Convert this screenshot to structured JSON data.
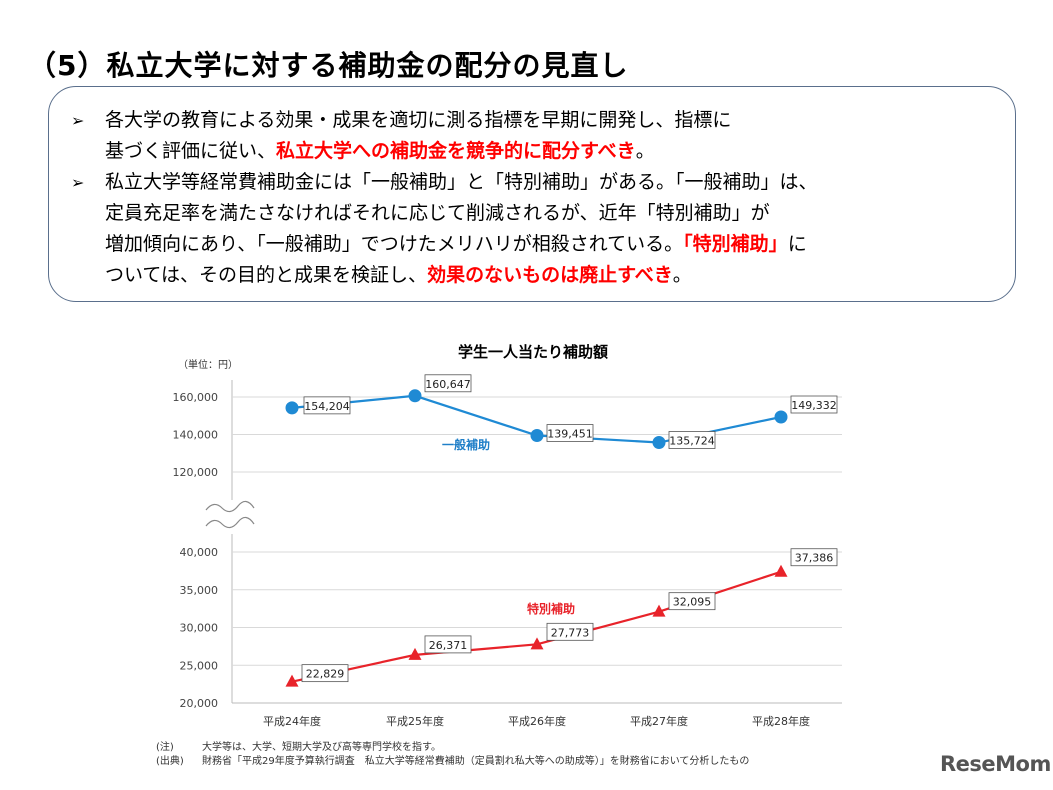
{
  "page": {
    "title": "（5）私立大学に対する補助金の配分の見直し"
  },
  "summary": {
    "bullet_glyph": "➢",
    "bullets": [
      {
        "lines": [
          [
            {
              "text": "各大学の教育による効果・成果を適切に測る指標を早期に開発し、指標に",
              "hl": false
            }
          ],
          [
            {
              "text": "基づく評価に従い、",
              "hl": false
            },
            {
              "text": "私立大学への補助金を競争的に配分すべき",
              "hl": true
            },
            {
              "text": "。",
              "hl": false
            }
          ]
        ]
      },
      {
        "lines": [
          [
            {
              "text": "私立大学等経常費補助金には「一般補助」と「特別補助」がある。「一般補助」は、",
              "hl": false
            }
          ],
          [
            {
              "text": "定員充足率を満たさなければそれに応じて削減されるが、近年「特別補助」が",
              "hl": false
            }
          ],
          [
            {
              "text": "増加傾向にあり、「一般補助」でつけたメリハリが相殺されている。",
              "hl": false
            },
            {
              "text": "「特別補助」",
              "hl": true
            },
            {
              "text": "に",
              "hl": false
            }
          ],
          [
            {
              "text": "ついては、その目的と成果を検証し、",
              "hl": false
            },
            {
              "text": "効果のないものは廃止すべき",
              "hl": true
            },
            {
              "text": "。",
              "hl": false
            }
          ]
        ]
      }
    ]
  },
  "chart_data": {
    "type": "line",
    "title": "学生一人当たり補助額",
    "unit_label": "（単位：円）",
    "categories": [
      "平成24年度",
      "平成25年度",
      "平成26年度",
      "平成27年度",
      "平成28年度"
    ],
    "axis_break": true,
    "y_upper": {
      "range": [
        120000,
        160000
      ],
      "ticks": [
        "120,000",
        "140,000",
        "160,000"
      ],
      "tick_values": [
        120000,
        140000,
        160000
      ]
    },
    "y_lower": {
      "range": [
        20000,
        40000
      ],
      "ticks": [
        "20,000",
        "25,000",
        "30,000",
        "35,000",
        "40,000"
      ],
      "tick_values": [
        20000,
        25000,
        30000,
        35000,
        40000
      ]
    },
    "grid": "horizontal",
    "series": [
      {
        "name": "一般補助",
        "marker": "circle",
        "color": "#1f8ad4",
        "label_color": "#1f7fc8",
        "values": [
          154204,
          160647,
          139451,
          135724,
          149332
        ],
        "labels": [
          "154,204",
          "160,647",
          "139,451",
          "135,724",
          "149,332"
        ]
      },
      {
        "name": "特別補助",
        "marker": "triangle",
        "color": "#e8232a",
        "label_color": "#e8232a",
        "values": [
          22829,
          26371,
          27773,
          32095,
          37386
        ],
        "labels": [
          "22,829",
          "26,371",
          "27,773",
          "32,095",
          "37,386"
        ]
      }
    ]
  },
  "notes": [
    {
      "label": "(注)",
      "text": "大学等は、大学、短期大学及び高等専門学校を指す。"
    },
    {
      "label": "(出典)",
      "text": "財務省「平成29年度予算執行調査　私立大学等経常費補助（定員割れ私大等への助成等）」を財務省において分析したもの"
    }
  ],
  "logo": {
    "text": "ReseMom"
  }
}
